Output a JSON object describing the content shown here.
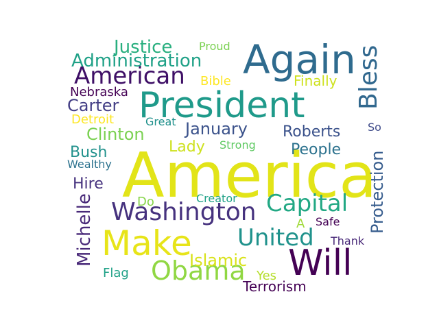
{
  "words": [
    {
      "text": "America",
      "color": "#e2e418"
    },
    {
      "text": "President",
      "color": "#1f9a8a"
    },
    {
      "text": "Again",
      "color": "#2f6b8e"
    },
    {
      "text": "Will",
      "color": "#440154"
    },
    {
      "text": "Make",
      "color": "#e7e419"
    },
    {
      "text": "Washington",
      "color": "#46327e"
    },
    {
      "text": "Obama",
      "color": "#90d743"
    },
    {
      "text": "Capital",
      "color": "#22a884"
    },
    {
      "text": "United",
      "color": "#20928c"
    },
    {
      "text": "American",
      "color": "#3e0f66"
    },
    {
      "text": "Bless",
      "color": "#31688e"
    },
    {
      "text": "Protection",
      "color": "#365c8d"
    },
    {
      "text": "Justice",
      "color": "#29af7f"
    },
    {
      "text": "Administration",
      "color": "#1fa187"
    },
    {
      "text": "Michelle",
      "color": "#482878"
    },
    {
      "text": "Carter",
      "color": "#433e85"
    },
    {
      "text": "Clinton",
      "color": "#7ad151"
    },
    {
      "text": "January",
      "color": "#3b528b"
    },
    {
      "text": "Roberts",
      "color": "#3b528b"
    },
    {
      "text": "People",
      "color": "#2c728e"
    },
    {
      "text": "Islamic",
      "color": "#d8e219"
    },
    {
      "text": "Terrorism",
      "color": "#440154"
    },
    {
      "text": "Lady",
      "color": "#cde11d"
    },
    {
      "text": "Bush",
      "color": "#21918c"
    },
    {
      "text": "Hire",
      "color": "#46327e"
    },
    {
      "text": "Nebraska",
      "color": "#440154"
    },
    {
      "text": "Finally",
      "color": "#cde11d"
    },
    {
      "text": "Bible",
      "color": "#fde725"
    },
    {
      "text": "Detroit",
      "color": "#fde725"
    },
    {
      "text": "Great",
      "color": "#21918c"
    },
    {
      "text": "Strong",
      "color": "#5ec962"
    },
    {
      "text": "Wealthy",
      "color": "#2c728e"
    },
    {
      "text": "Creator",
      "color": "#1fa187"
    },
    {
      "text": "Flag",
      "color": "#1fa187"
    },
    {
      "text": "Proud",
      "color": "#7ad151"
    },
    {
      "text": "Safe",
      "color": "#440154"
    },
    {
      "text": "Thank",
      "color": "#482878"
    },
    {
      "text": "Yes",
      "color": "#b5de2b"
    },
    {
      "text": "Do",
      "color": "#86d549"
    },
    {
      "text": "A",
      "color": "#a0da39"
    },
    {
      "text": "So",
      "color": "#3e4a89"
    }
  ]
}
